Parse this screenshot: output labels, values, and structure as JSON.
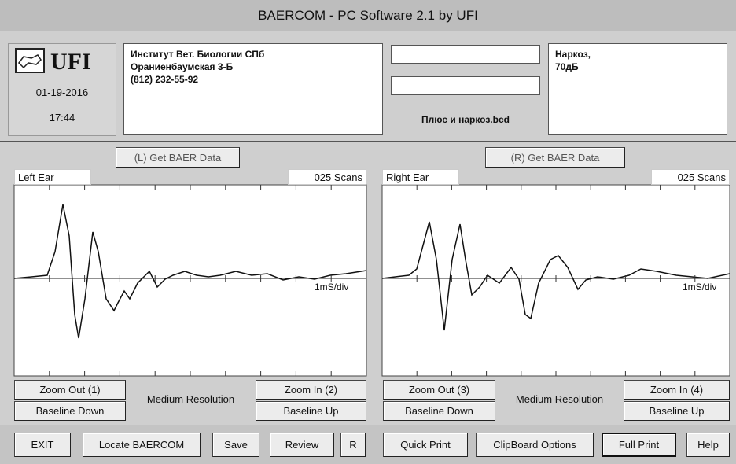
{
  "window_title": "BAERCOM - PC Software 2.1  by UFI",
  "header": {
    "logo": "UFI",
    "date": "01-19-2016",
    "time": "17:44",
    "address": [
      "Институт  Вет. Биологии СПб",
      "Ораниенбаумская  3-Б",
      "(812) 232-55-92"
    ],
    "file": "Плюс и наркоз.bcd",
    "notes": [
      "Наркоз,",
      "70дБ"
    ]
  },
  "left": {
    "get_button": "(L)  Get BAER Data",
    "label": "Left  Ear",
    "scans": "025 Scans",
    "scale": "1mS/div",
    "zoom_out": "Zoom Out (1)",
    "baseline_down": "Baseline Down",
    "resolution": "Medium Resolution",
    "zoom_in": "Zoom In (2)",
    "baseline_up": "Baseline Up"
  },
  "right": {
    "get_button": "(R)  Get BAER Data",
    "label": "Right Ear",
    "scans": "025 Scans",
    "scale": "1mS/div",
    "zoom_out": "Zoom Out (3)",
    "baseline_down": "Baseline Down",
    "resolution": "Medium Resolution",
    "zoom_in": "Zoom In (4)",
    "baseline_up": "Baseline Up"
  },
  "toolbar": [
    "EXIT",
    "Locate BAERCOM",
    "Save",
    "Review",
    "R",
    "Quick Print",
    "ClipBoard Options",
    "Full Print",
    "Help"
  ]
}
